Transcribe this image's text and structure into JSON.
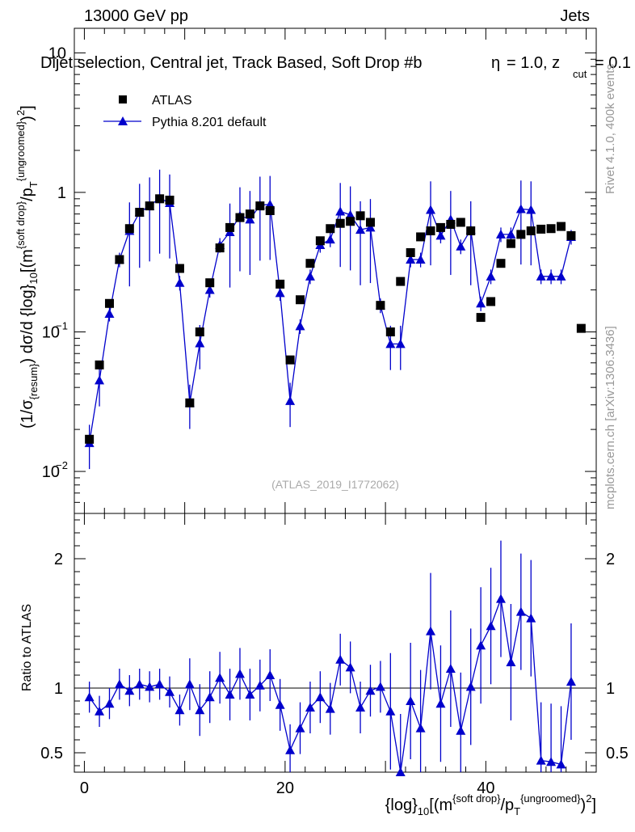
{
  "header": {
    "energy_label": "13000 GeV pp",
    "category_label": "Jets",
    "title": "Dijet selection, Central jet, Track Based, Soft Drop #b",
    "params": "= 1.0, z",
    "params_sub": "cut",
    "params_tail": "= 0.1",
    "params_symbol": "η"
  },
  "side": {
    "rivet_label": "Rivet 4.1.0,  400k events",
    "source_label": "mcplots.cern.ch [arXiv:1306.3436]"
  },
  "analysis_label": "(ATLAS_2019_I1772062)",
  "colors": {
    "mc": "#0000cc",
    "data": "#000000"
  },
  "chart_data": [
    {
      "type": "scatter",
      "title": "Dijet selection, Central jet, Track Based, Soft Drop",
      "ylabel": "(1/σ_resum) dσ/d {log}_10[(m^{soft drop}/p_T^{ungroomed})^2]",
      "yscale": "log",
      "ylim": [
        0.005,
        15
      ],
      "xlim": [
        -1,
        51
      ],
      "yticks": [
        "10^-2",
        "10^-1",
        "1",
        "10"
      ],
      "legend": [
        {
          "label": "ATLAS",
          "marker": "square"
        },
        {
          "label": "Pythia 8.201 default",
          "marker": "triangle"
        }
      ],
      "series": [
        {
          "name": "ATLAS",
          "x": [
            0.5,
            1.5,
            2.5,
            3.5,
            4.5,
            5.5,
            6.5,
            7.5,
            8.5,
            9.5,
            10.5,
            11.5,
            12.5,
            13.5,
            14.5,
            15.5,
            16.5,
            17.5,
            18.5,
            19.5,
            20.5,
            21.5,
            22.5,
            23.5,
            24.5,
            25.5,
            26.5,
            27.5,
            28.5,
            29.5,
            30.5,
            31.5,
            32.5,
            33.5,
            34.5,
            35.5,
            36.5,
            37.5,
            38.5,
            39.5,
            40.5,
            41.5,
            42.5,
            43.5,
            44.5,
            45.5,
            46.5,
            47.5,
            48.5,
            49.5
          ],
          "values": [
            0.017,
            0.058,
            0.16,
            0.33,
            0.55,
            0.72,
            0.8,
            0.9,
            0.88,
            0.285,
            0.031,
            0.1,
            0.225,
            0.4,
            0.56,
            0.66,
            0.7,
            0.8,
            0.74,
            0.22,
            0.063,
            0.17,
            0.31,
            0.45,
            0.55,
            0.6,
            0.62,
            0.68,
            0.61,
            0.155,
            0.1,
            0.23,
            0.37,
            0.48,
            0.53,
            0.56,
            0.59,
            0.61,
            0.53,
            0.127,
            0.165,
            0.31,
            0.43,
            0.5,
            0.53,
            0.545,
            0.55,
            0.57,
            0.49,
            0.106
          ]
        },
        {
          "name": "Pythia 8.201 default",
          "x": [
            0.5,
            1.5,
            2.5,
            3.5,
            4.5,
            5.5,
            6.5,
            7.5,
            8.5,
            9.5,
            10.5,
            11.5,
            12.5,
            13.5,
            14.5,
            15.5,
            16.5,
            17.5,
            18.5,
            19.5,
            20.5,
            21.5,
            22.5,
            23.5,
            24.5,
            25.5,
            26.5,
            27.5,
            28.5,
            29.5,
            30.5,
            31.5,
            32.5,
            33.5,
            34.5,
            35.5,
            36.5,
            37.5,
            38.5,
            39.5,
            40.5,
            41.5,
            42.5,
            43.5,
            44.5,
            45.5,
            46.5,
            47.5,
            48.5
          ],
          "values": [
            0.016,
            0.045,
            0.135,
            0.33,
            0.53,
            0.72,
            0.8,
            0.91,
            0.84,
            0.225,
            0.031,
            0.083,
            0.2,
            0.42,
            0.52,
            0.68,
            0.64,
            0.81,
            0.82,
            0.19,
            0.032,
            0.11,
            0.25,
            0.42,
            0.46,
            0.73,
            0.69,
            0.54,
            0.56,
            0.155,
            0.082,
            0.082,
            0.33,
            0.33,
            0.75,
            0.49,
            0.64,
            0.41,
            0.54,
            0.16,
            0.25,
            0.5,
            0.5,
            0.76,
            0.75,
            0.25,
            0.25,
            0.25,
            0.48
          ]
        }
      ]
    },
    {
      "type": "line",
      "ylabel": "Ratio to ATLAS",
      "xlabel": "{log}_10[(m^{soft drop}/p_T^{ungroomed})^2]",
      "ylim": [
        0.35,
        2.35
      ],
      "xlim": [
        -1,
        51
      ],
      "xticks": [
        "0",
        "20",
        "40"
      ],
      "yticks": [
        "0.5",
        "1",
        "2"
      ],
      "series": [
        {
          "name": "Pythia 8.201 default / ATLAS",
          "x": [
            0.5,
            1.5,
            2.5,
            3.5,
            4.5,
            5.5,
            6.5,
            7.5,
            8.5,
            9.5,
            10.5,
            11.5,
            12.5,
            13.5,
            14.5,
            15.5,
            16.5,
            17.5,
            18.5,
            19.5,
            20.5,
            21.5,
            22.5,
            23.5,
            24.5,
            25.5,
            26.5,
            27.5,
            28.5,
            29.5,
            30.5,
            31.5,
            32.5,
            33.5,
            34.5,
            35.5,
            36.5,
            37.5,
            38.5,
            39.5,
            40.5,
            41.5,
            42.5,
            43.5,
            44.5,
            45.5,
            46.5,
            47.5,
            48.5
          ],
          "values": [
            0.93,
            0.82,
            0.88,
            1.03,
            0.98,
            1.03,
            1.01,
            1.03,
            0.97,
            0.83,
            1.03,
            0.83,
            0.93,
            1.08,
            0.95,
            1.11,
            0.95,
            1.02,
            1.1,
            0.87,
            0.52,
            0.69,
            0.85,
            0.93,
            0.84,
            1.22,
            1.16,
            0.85,
            0.98,
            1.01,
            0.82,
            0.35,
            0.9,
            0.69,
            1.44,
            0.88,
            1.15,
            0.67,
            1.01,
            1.33,
            1.48,
            1.69,
            1.2,
            1.59,
            1.54,
            0.44,
            0.43,
            0.41,
            1.05
          ]
        }
      ]
    }
  ]
}
